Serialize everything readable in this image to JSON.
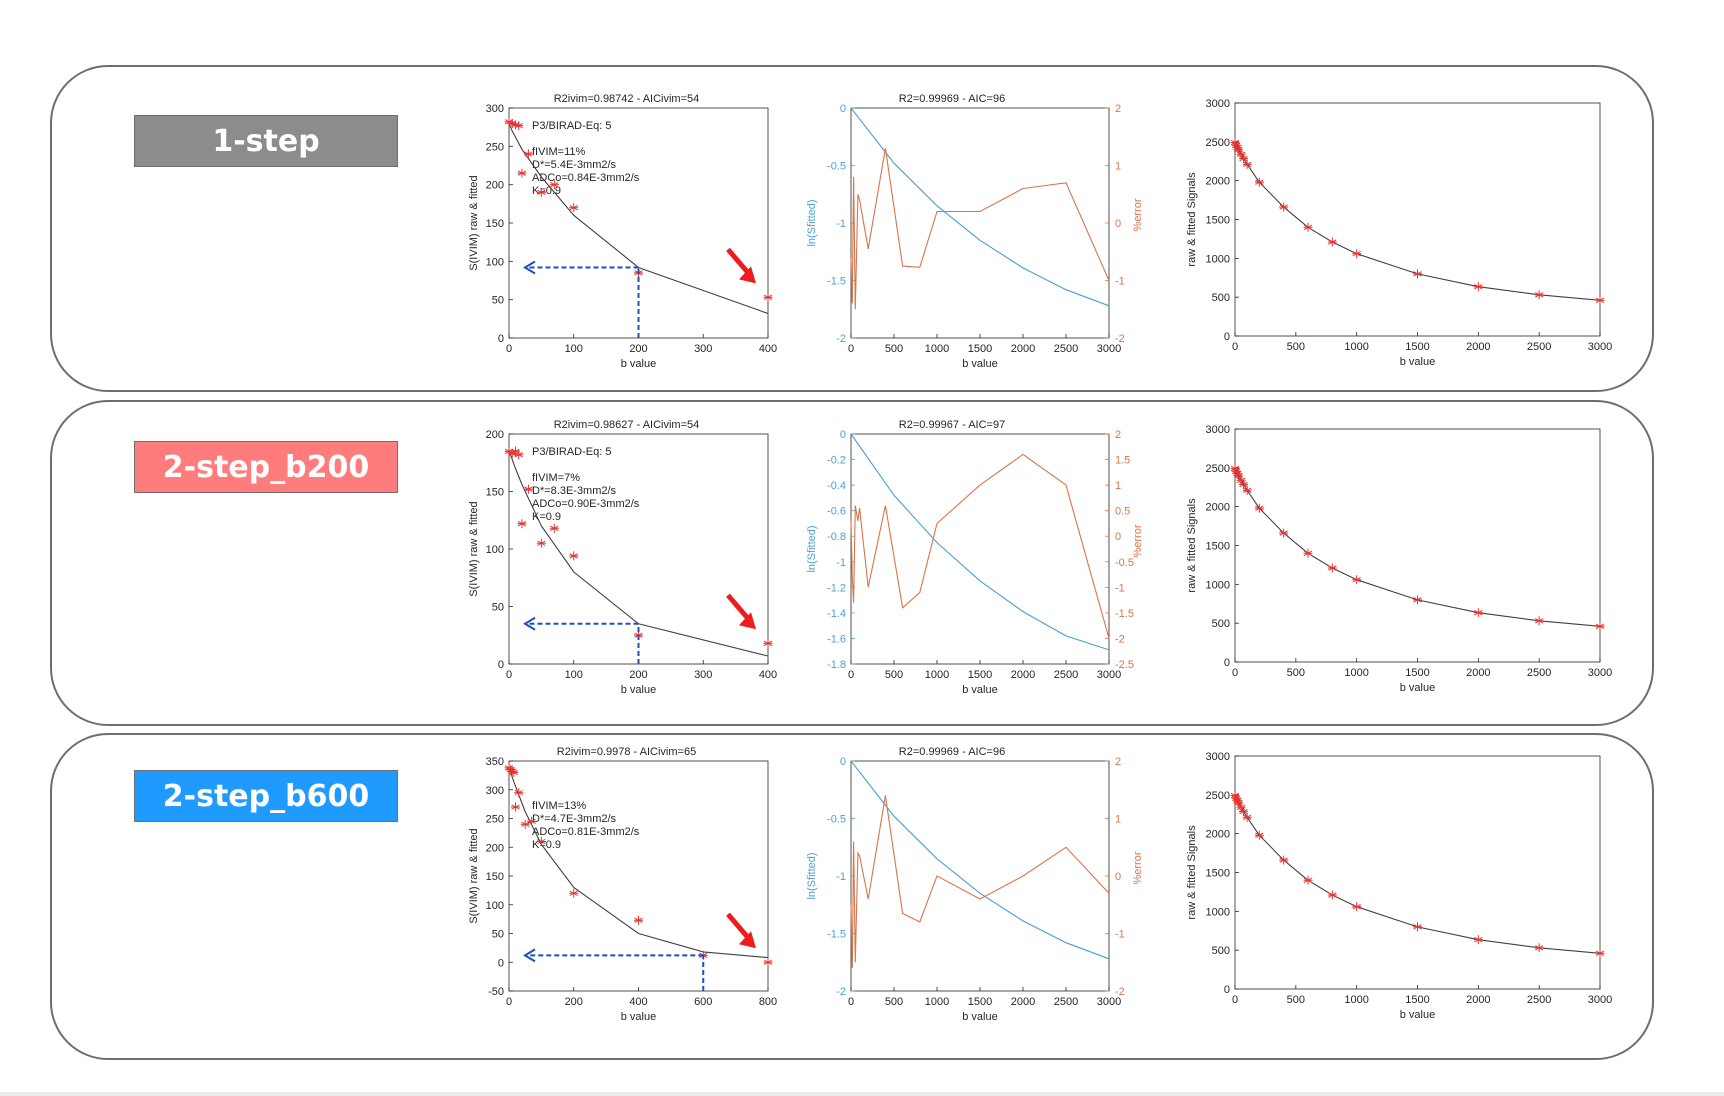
{
  "rows": [
    {
      "label": "1-step",
      "label_color": "#8c8c8c",
      "ivim": {
        "title": "R2ivim=0.98742 - AICivim=54",
        "ylabel": "S(IVIM) raw & fitted",
        "xlabel": "b value",
        "annotation": [
          "P3/BIRAD-Eq: 5",
          "",
          "fIVIM=11%",
          "D*=5.4E-3mm2/s",
          "ADCo=0.84E-3mm2/s",
          "K=0.9"
        ],
        "x_ticks": [
          "0",
          "100",
          "200",
          "300",
          "400"
        ],
        "y_ticks": [
          "0",
          "50",
          "100",
          "150",
          "200",
          "250",
          "300"
        ],
        "marker_b": 200,
        "marker_s": 92
      },
      "ln": {
        "title": "R2=0.99969 - AIC=96",
        "ylabel_left": "ln(Sfitted)",
        "ylabel_right": "%error",
        "xlabel": "b value",
        "x_ticks": [
          "0",
          "500",
          "1000",
          "1500",
          "2000",
          "2500",
          "3000"
        ],
        "y_left_ticks": [
          "-2",
          "-1.5",
          "-1",
          "-0.5",
          "0"
        ],
        "y_right_ticks": [
          "-2",
          "-1",
          "0",
          "1",
          "2"
        ]
      },
      "signal": {
        "ylabel": "raw & fitted Signals",
        "xlabel": "b value",
        "x_ticks": [
          "0",
          "500",
          "1000",
          "1500",
          "2000",
          "2500",
          "3000"
        ],
        "y_ticks": [
          "0",
          "500",
          "1000",
          "1500",
          "2000",
          "2500",
          "3000"
        ]
      }
    },
    {
      "label": "2-step_b200",
      "label_color": "#ff7c7c",
      "ivim": {
        "title": "R2ivim=0.98627 - AICivim=54",
        "ylabel": "S(IVIM) raw & fitted",
        "xlabel": "b value",
        "annotation": [
          "P3/BIRAD-Eq: 5",
          "",
          "fIVIM=7%",
          "D*=8.3E-3mm2/s",
          "ADCo=0.90E-3mm2/s",
          "K=0.9"
        ],
        "x_ticks": [
          "0",
          "100",
          "200",
          "300",
          "400"
        ],
        "y_ticks": [
          "0",
          "50",
          "100",
          "150",
          "200"
        ],
        "marker_b": 200,
        "marker_s": 35
      },
      "ln": {
        "title": "R2=0.99967 - AIC=97",
        "ylabel_left": "ln(Sfitted)",
        "ylabel_right": "%error",
        "xlabel": "b value",
        "x_ticks": [
          "0",
          "500",
          "1000",
          "1500",
          "2000",
          "2500",
          "3000"
        ],
        "y_left_ticks": [
          "-1.8",
          "-1.6",
          "-1.4",
          "-1.2",
          "-1",
          "-0.8",
          "-0.6",
          "-0.4",
          "-0.2",
          "0"
        ],
        "y_right_ticks": [
          "-2.5",
          "-2",
          "-1.5",
          "-1",
          "-0.5",
          "0",
          "0.5",
          "1",
          "1.5",
          "2"
        ]
      },
      "signal": {
        "ylabel": "raw & fitted Signals",
        "xlabel": "b value",
        "x_ticks": [
          "0",
          "500",
          "1000",
          "1500",
          "2000",
          "2500",
          "3000"
        ],
        "y_ticks": [
          "0",
          "500",
          "1000",
          "1500",
          "2000",
          "2500",
          "3000"
        ]
      }
    },
    {
      "label": "2-step_b600",
      "label_color": "#1f9bff",
      "ivim": {
        "title": "R2ivim=0.9978 - AICivim=65",
        "ylabel": "S(IVIM) raw & fitted",
        "xlabel": "b value",
        "annotation": [
          "fIVIM=13%",
          "D*=4.7E-3mm2/s",
          "ADCo=0.81E-3mm2/s",
          "K=0.9"
        ],
        "x_ticks": [
          "0",
          "200",
          "400",
          "600",
          "800"
        ],
        "y_ticks": [
          "-50",
          "0",
          "50",
          "100",
          "150",
          "200",
          "250",
          "300",
          "350"
        ],
        "marker_b": 600,
        "marker_s": 12
      },
      "ln": {
        "title": "R2=0.99969 - AIC=96",
        "ylabel_left": "ln(Sfitted)",
        "ylabel_right": "%error",
        "xlabel": "b value",
        "x_ticks": [
          "0",
          "500",
          "1000",
          "1500",
          "2000",
          "2500",
          "3000"
        ],
        "y_left_ticks": [
          "-2",
          "-1.5",
          "-1",
          "-0.5",
          "0"
        ],
        "y_right_ticks": [
          "-2",
          "-1",
          "0",
          "1",
          "2"
        ]
      },
      "signal": {
        "ylabel": "raw & fitted Signals",
        "xlabel": "b value",
        "x_ticks": [
          "0",
          "500",
          "1000",
          "1500",
          "2000",
          "2500",
          "3000"
        ],
        "y_ticks": [
          "0",
          "500",
          "1000",
          "1500",
          "2000",
          "2500",
          "3000"
        ]
      }
    }
  ],
  "colors": {
    "fit_line": "#404040",
    "raw_marker": "#e8312f",
    "ln_curve": "#4c9fd0",
    "error_curve": "#d9744a",
    "marker_arrow": "#1f4fbf",
    "highlight_arrow": "#ee1c1c"
  },
  "chart_data": [
    {
      "type": "line",
      "row": 0,
      "title": "R2ivim=0.98742 - AICivim=54",
      "xlabel": "b value",
      "ylabel": "S(IVIM) raw & fitted",
      "xlim": [
        0,
        400
      ],
      "ylim": [
        0,
        300
      ],
      "series": [
        {
          "x": [
            0,
            5,
            10,
            20,
            50,
            100,
            200,
            400
          ],
          "values": [
            280,
            270,
            262,
            246,
            210,
            160,
            92,
            32
          ]
        },
        {
          "x": [
            0,
            5,
            10,
            15,
            20,
            30,
            50,
            70,
            100,
            200,
            400
          ],
          "values": [
            282,
            280,
            278,
            277,
            215,
            240,
            190,
            200,
            170,
            85,
            53
          ]
        }
      ]
    },
    {
      "type": "line",
      "row": 0,
      "title": "R2=0.99969 - AIC=96",
      "xlabel": "b value",
      "ylabel": "ln(Sfitted)",
      "xlim": [
        0,
        3000
      ],
      "ylim": [
        -2,
        0
      ],
      "y2lim": [
        -2,
        2
      ],
      "series": [
        {
          "x": [
            0,
            500,
            1000,
            1500,
            2000,
            2500,
            3000
          ],
          "values": [
            0,
            -0.48,
            -0.85,
            -1.15,
            -1.39,
            -1.58,
            -1.72
          ]
        },
        {
          "x": [
            0,
            15,
            30,
            50,
            80,
            100,
            200,
            400,
            600,
            800,
            1000,
            1500,
            2000,
            2500,
            3000
          ],
          "values": [
            -0.6,
            -1.4,
            0.8,
            -1.5,
            0.5,
            0.4,
            -0.45,
            1.3,
            -0.75,
            -0.77,
            0.2,
            0.2,
            0.6,
            0.7,
            -1.0
          ]
        }
      ]
    },
    {
      "type": "line",
      "row": 0,
      "xlabel": "b value",
      "ylabel": "raw & fitted Signals",
      "xlim": [
        0,
        3000
      ],
      "ylim": [
        0,
        3000
      ],
      "series": [
        {
          "x": [
            0,
            10,
            20,
            30,
            50,
            70,
            100,
            200,
            400,
            600,
            800,
            1000,
            1500,
            2000,
            2500,
            3000
          ],
          "values": [
            2490,
            2455,
            2430,
            2395,
            2340,
            2285,
            2210,
            1980,
            1660,
            1400,
            1210,
            1060,
            800,
            635,
            530,
            460
          ]
        }
      ]
    },
    {
      "type": "line",
      "row": 1,
      "title": "R2ivim=0.98627 - AICivim=54",
      "xlabel": "b value",
      "ylabel": "S(IVIM) raw & fitted",
      "xlim": [
        0,
        400
      ],
      "ylim": [
        0,
        200
      ],
      "series": [
        {
          "x": [
            0,
            5,
            10,
            20,
            50,
            100,
            200,
            400
          ],
          "values": [
            185,
            178,
            170,
            156,
            120,
            80,
            35,
            7
          ]
        },
        {
          "x": [
            0,
            5,
            10,
            15,
            20,
            30,
            50,
            70,
            100,
            200,
            400
          ],
          "values": [
            185,
            183,
            185,
            182,
            122,
            152,
            105,
            118,
            94,
            25,
            18
          ]
        }
      ]
    },
    {
      "type": "line",
      "row": 1,
      "title": "R2=0.99967 - AIC=97",
      "xlabel": "b value",
      "ylabel": "ln(Sfitted)",
      "xlim": [
        0,
        3000
      ],
      "ylim": [
        -1.8,
        0
      ],
      "y2lim": [
        -2.5,
        2
      ],
      "series": [
        {
          "x": [
            0,
            500,
            1000,
            1500,
            2000,
            2500,
            3000
          ],
          "values": [
            0,
            -0.48,
            -0.85,
            -1.15,
            -1.39,
            -1.58,
            -1.69
          ]
        },
        {
          "x": [
            0,
            15,
            30,
            50,
            80,
            100,
            200,
            400,
            600,
            800,
            1000,
            1500,
            2000,
            2500,
            3000
          ],
          "values": [
            0.3,
            -0.8,
            -1.3,
            0.6,
            0.3,
            0.55,
            -1.0,
            0.6,
            -1.4,
            -1.1,
            0.25,
            1.0,
            1.6,
            1.0,
            -2.0
          ]
        }
      ]
    },
    {
      "type": "line",
      "row": 1,
      "xlabel": "b value",
      "ylabel": "raw & fitted Signals",
      "xlim": [
        0,
        3000
      ],
      "ylim": [
        0,
        3000
      ],
      "series": [
        {
          "x": [
            0,
            10,
            20,
            30,
            50,
            70,
            100,
            200,
            400,
            600,
            800,
            1000,
            1500,
            2000,
            2500,
            3000
          ],
          "values": [
            2490,
            2455,
            2430,
            2395,
            2340,
            2285,
            2210,
            1980,
            1660,
            1400,
            1210,
            1060,
            800,
            635,
            530,
            460
          ]
        }
      ]
    },
    {
      "type": "line",
      "row": 2,
      "title": "R2ivim=0.9978 - AICivim=65",
      "xlabel": "b value",
      "ylabel": "S(IVIM) raw & fitted",
      "xlim": [
        0,
        800
      ],
      "ylim": [
        -50,
        350
      ],
      "series": [
        {
          "x": [
            0,
            5,
            10,
            20,
            50,
            100,
            200,
            400,
            600,
            800
          ],
          "values": [
            335,
            330,
            322,
            306,
            262,
            205,
            130,
            50,
            18,
            8
          ]
        },
        {
          "x": [
            0,
            5,
            10,
            15,
            20,
            30,
            50,
            70,
            100,
            200,
            400,
            600,
            800
          ],
          "values": [
            338,
            335,
            332,
            330,
            270,
            295,
            240,
            245,
            210,
            120,
            73,
            12,
            0
          ]
        }
      ]
    },
    {
      "type": "line",
      "row": 2,
      "title": "R2=0.99969 - AIC=96",
      "xlabel": "b value",
      "ylabel": "ln(Sfitted)",
      "xlim": [
        0,
        3000
      ],
      "ylim": [
        -2,
        0
      ],
      "y2lim": [
        -2,
        2
      ],
      "series": [
        {
          "x": [
            0,
            500,
            1000,
            1500,
            2000,
            2500,
            3000
          ],
          "values": [
            0,
            -0.48,
            -0.85,
            -1.15,
            -1.39,
            -1.58,
            -1.72
          ]
        },
        {
          "x": [
            0,
            15,
            30,
            50,
            80,
            100,
            200,
            400,
            600,
            800,
            1000,
            1500,
            2000,
            2500,
            3000
          ],
          "values": [
            -0.5,
            -1.6,
            0.6,
            -1.5,
            0.4,
            0.35,
            -0.4,
            1.4,
            -0.65,
            -0.8,
            0.0,
            -0.4,
            0.0,
            0.5,
            -0.3
          ]
        }
      ]
    },
    {
      "type": "line",
      "row": 2,
      "xlabel": "b value",
      "ylabel": "raw & fitted Signals",
      "xlim": [
        0,
        3000
      ],
      "ylim": [
        0,
        3000
      ],
      "series": [
        {
          "x": [
            0,
            10,
            20,
            30,
            50,
            70,
            100,
            200,
            400,
            600,
            800,
            1000,
            1500,
            2000,
            2500,
            3000
          ],
          "values": [
            2490,
            2455,
            2430,
            2395,
            2340,
            2285,
            2210,
            1980,
            1660,
            1400,
            1210,
            1060,
            800,
            635,
            530,
            460
          ]
        }
      ]
    }
  ]
}
